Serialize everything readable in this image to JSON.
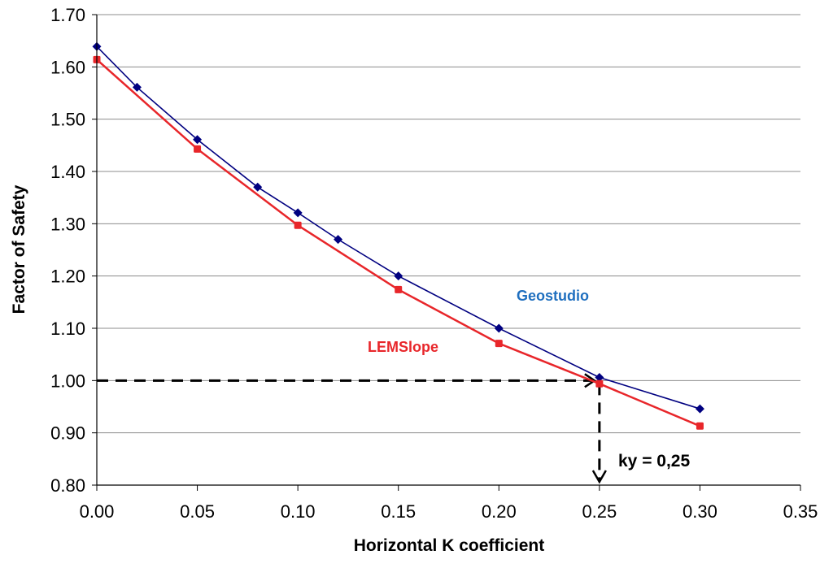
{
  "chart_data": {
    "type": "line",
    "xlabel": "Horizontal K coefficient",
    "ylabel": "Factor of Safety",
    "xlim": [
      0,
      0.35
    ],
    "ylim": [
      0.8,
      1.7
    ],
    "x_ticks": [
      "0.00",
      "0.05",
      "0.10",
      "0.15",
      "0.20",
      "0.25",
      "0.30",
      "0.35"
    ],
    "y_ticks": [
      "0.80",
      "0.90",
      "1.00",
      "1.10",
      "1.20",
      "1.30",
      "1.40",
      "1.50",
      "1.60",
      "1.70"
    ],
    "grid": "horizontal",
    "series": [
      {
        "name": "Geostudio",
        "color": "#000080",
        "label_color": "#1f6fbf",
        "marker": "diamond",
        "x": [
          0,
          0.02,
          0.05,
          0.08,
          0.1,
          0.12,
          0.15,
          0.2,
          0.25,
          0.3
        ],
        "y": [
          1.639,
          1.561,
          1.461,
          1.37,
          1.321,
          1.27,
          1.2,
          1.1,
          1.006,
          0.946
        ]
      },
      {
        "name": "LEMSlope",
        "color": "#e8262a",
        "label_color": "#e8262a",
        "marker": "square",
        "x": [
          0,
          0.05,
          0.1,
          0.15,
          0.2,
          0.25,
          0.3
        ],
        "y": [
          1.614,
          1.443,
          1.297,
          1.174,
          1.071,
          0.994,
          0.913
        ]
      }
    ],
    "annotation": {
      "text": "ky = 0,25",
      "ky": 0.25,
      "fs": 1.0
    }
  }
}
